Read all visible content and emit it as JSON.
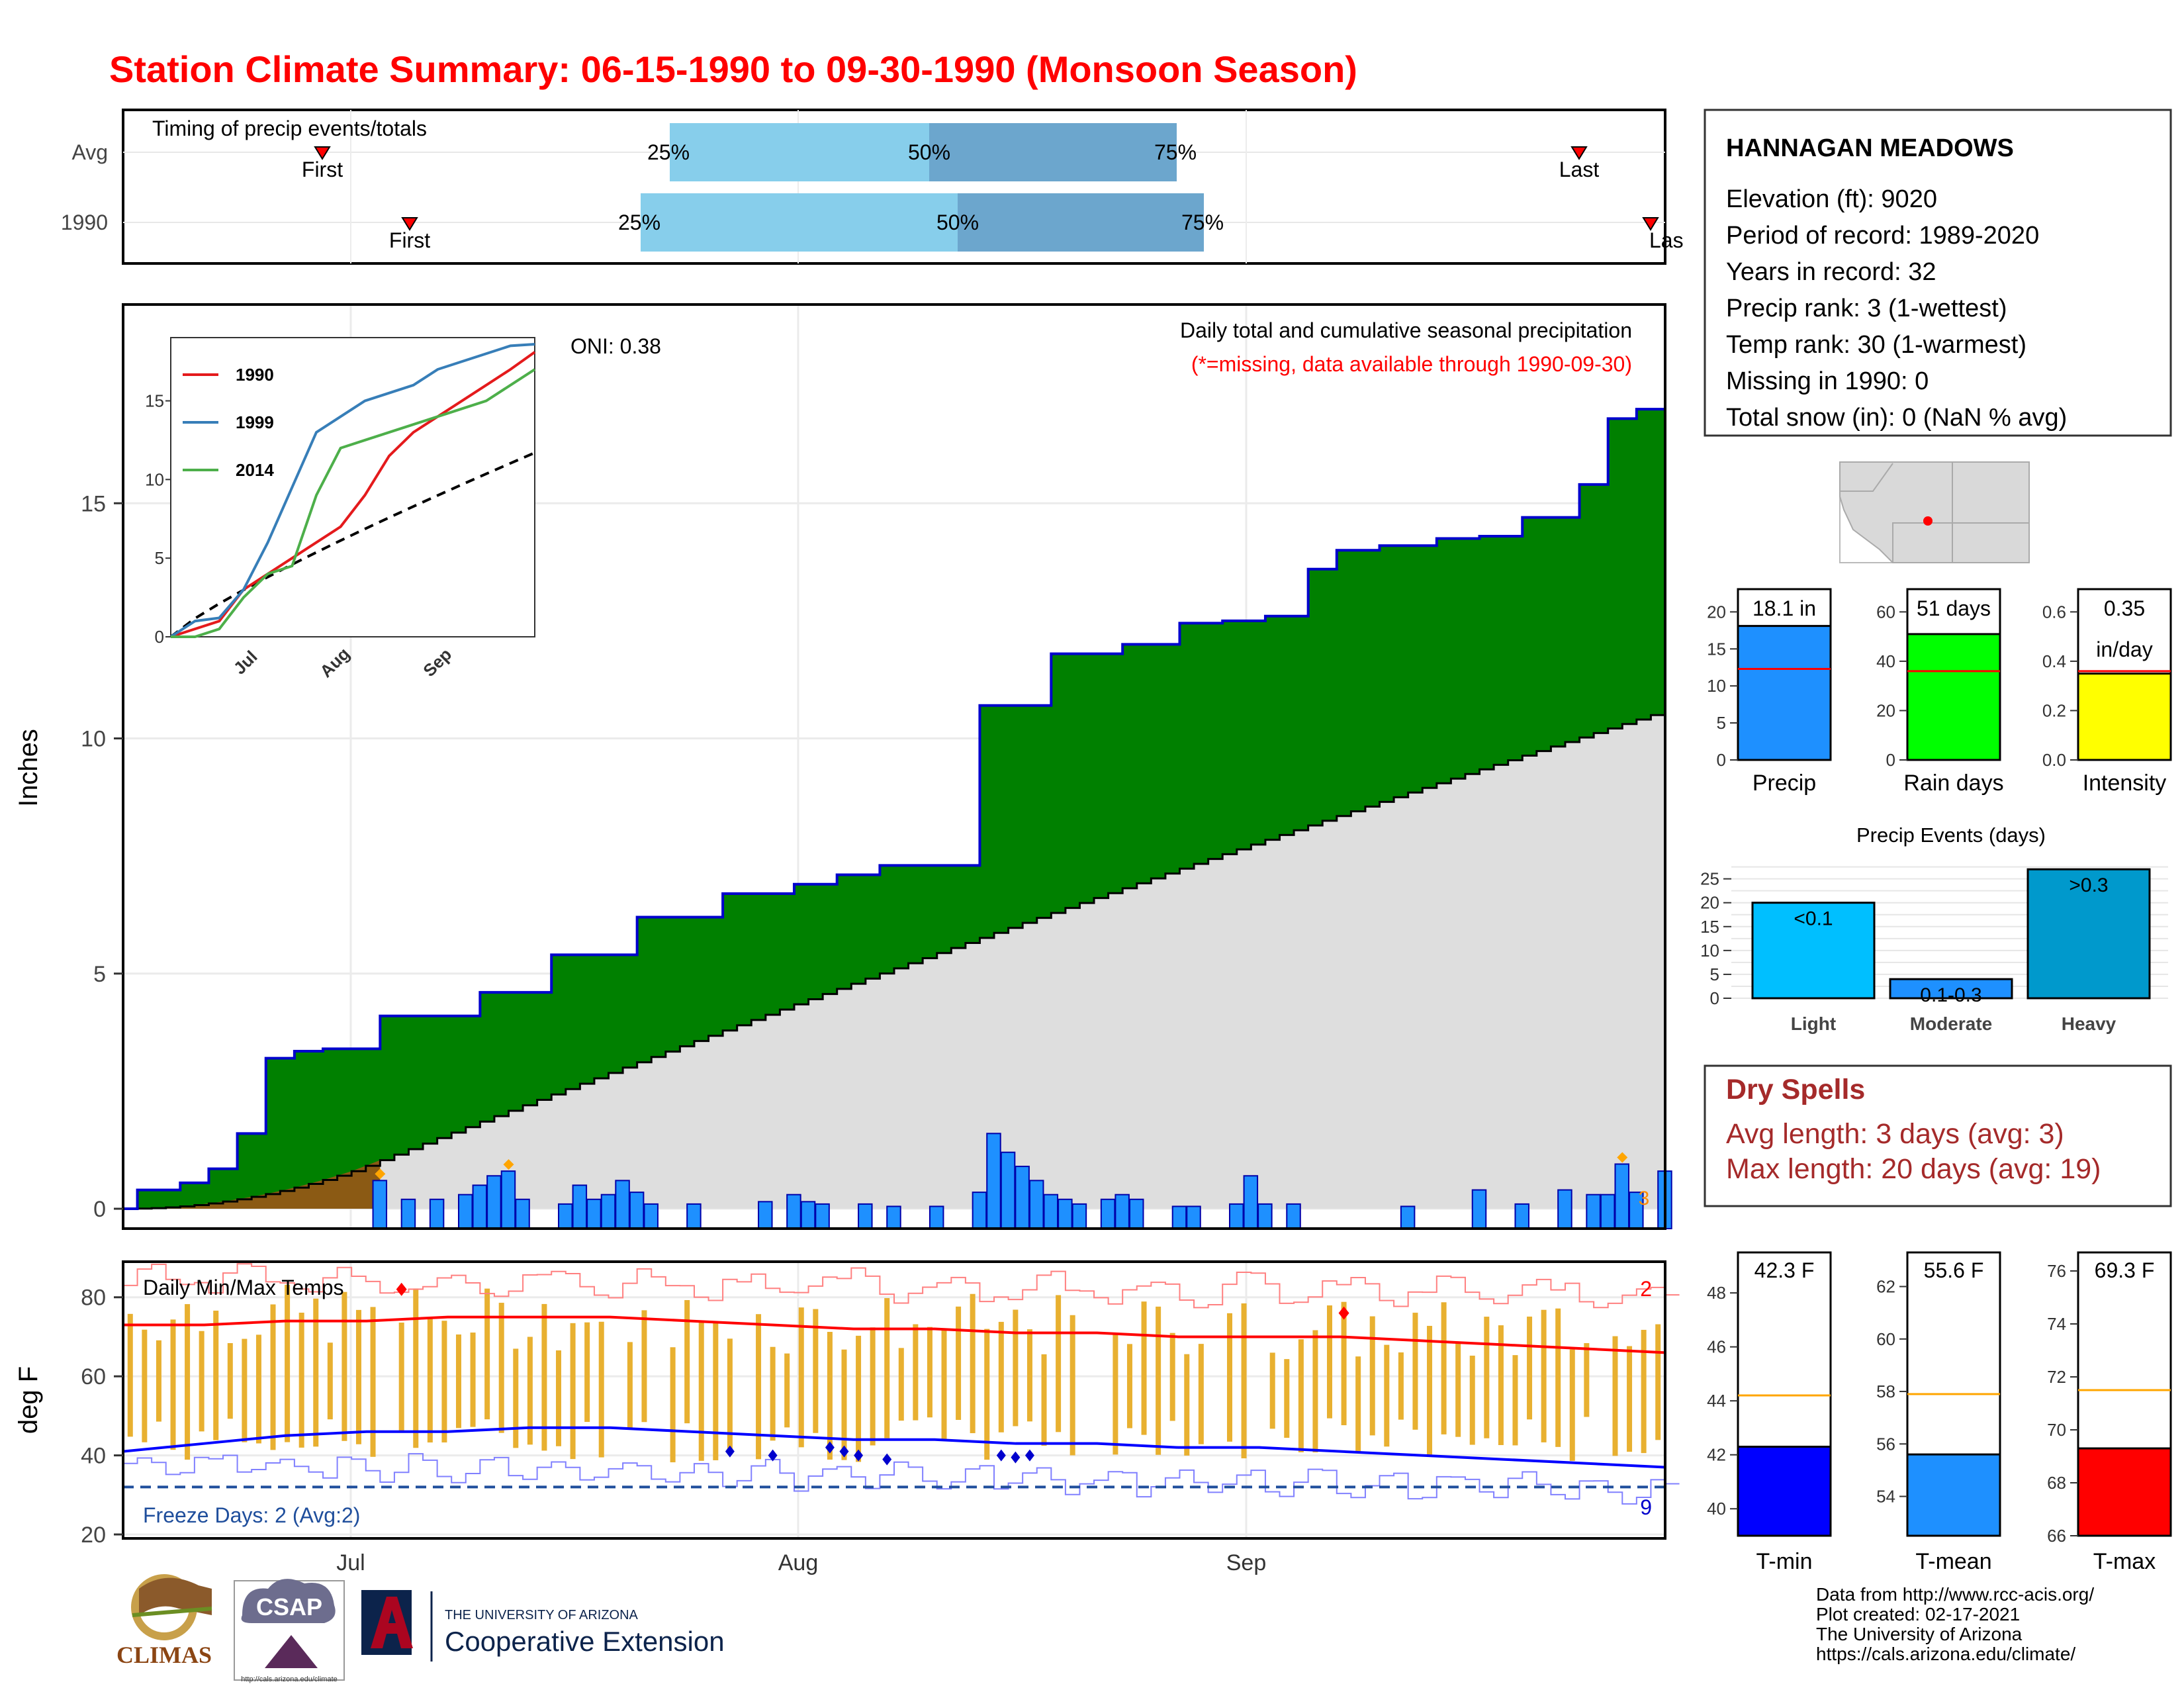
{
  "title": "Station Climate Summary: 06-15-1990 to 09-30-1990 (Monsoon Season)",
  "timing": {
    "label": "Timing of precip events/totals",
    "rows": [
      {
        "name": "Avg",
        "first": "Jun 20",
        "p25": "Jul 29",
        "p50": "Aug 6",
        "p75": "Aug 13",
        "last": "Sep 27"
      },
      {
        "name": "1990",
        "first": "Jul 2",
        "p25": "Jul 28",
        "p50": "Aug 7",
        "p75": "Aug 14",
        "last": "Sep 30"
      }
    ],
    "pct_labels": [
      "25%",
      "50%",
      "75%"
    ],
    "first_label": "First",
    "last_label": "Last",
    "last_label_clipped": "Las"
  },
  "main_panel": {
    "ylabel": "Inches",
    "oni": "ONI: 0.38",
    "caption": "Daily total and cumulative seasonal precipitation",
    "missing_note": "(*=missing, data available through 1990-09-30)",
    "marker_values": [
      "3"
    ]
  },
  "inset": {
    "series": [
      {
        "name": "1990",
        "color": "#e41a1c"
      },
      {
        "name": "1999",
        "color": "#377eb8"
      },
      {
        "name": "2014",
        "color": "#4daf4a"
      }
    ],
    "xticks": [
      "Jul",
      "Aug",
      "Sep"
    ]
  },
  "temp_panel": {
    "title": "Daily Min/Max Temps",
    "ylabel": "deg F",
    "freeze": "Freeze Days: 2 (Avg:2)",
    "count_top": "2",
    "count_bottom": "9"
  },
  "x_month_labels": [
    "Jul",
    "Aug",
    "Sep"
  ],
  "station": {
    "name": "HANNAGAN MEADOWS",
    "lines": [
      "Elevation (ft): 9020",
      "Period of record: 1989-2020",
      "Years in record: 32",
      "Precip rank: 3 (1-wettest)",
      "Temp rank: 30 (1-warmest)",
      "Missing in 1990: 0",
      "Total snow (in): 0 (NaN % avg)"
    ]
  },
  "mini_bars": [
    {
      "label": "Precip",
      "value_text": "18.1 in",
      "value": 18.1,
      "avg": 12.3,
      "ymax": 22,
      "ticks": [
        "0",
        "5",
        "10",
        "15",
        "20"
      ],
      "color": "#1e90ff"
    },
    {
      "label": "Rain days",
      "value_text": "51 days",
      "value": 51,
      "avg": 36,
      "ymax": 66,
      "ticks": [
        "0",
        "20",
        "40",
        "60"
      ],
      "color": "#00ff00"
    },
    {
      "label": "Intensity",
      "value_text": "0.35",
      "value_text2": "in/day",
      "value": 0.35,
      "avg": 0.36,
      "ymax": 0.66,
      "ticks": [
        "0.0",
        "0.2",
        "0.4",
        "0.6"
      ],
      "color": "#ffff00"
    }
  ],
  "precip_events": {
    "title": "Precip Events (days)",
    "categories": [
      "Light",
      "Moderate",
      "Heavy"
    ],
    "labels": [
      "<0.1",
      "0.1-0.3",
      ">0.3"
    ],
    "values": [
      20,
      4,
      27
    ],
    "ticks": [
      "0",
      "5",
      "10",
      "15",
      "20",
      "25"
    ]
  },
  "dry_spells": {
    "title": "Dry Spells",
    "avg": "Avg length: 3 days (avg: 3)",
    "max": "Max length: 20 days (avg: 19)"
  },
  "temp_bars": [
    {
      "label": "T-min",
      "value_text": "42.3 F",
      "value": 42.3,
      "avg": 44.2,
      "ymin": 39,
      "ymax": 49.5,
      "ticks": [
        "40",
        "42",
        "44",
        "46",
        "48"
      ],
      "color": "#0000ff"
    },
    {
      "label": "T-mean",
      "value_text": "55.6 F",
      "value": 55.6,
      "avg": 57.9,
      "ymin": 52.5,
      "ymax": 63.3,
      "ticks": [
        "54",
        "56",
        "58",
        "60",
        "62"
      ],
      "color": "#1e90ff"
    },
    {
      "label": "T-max",
      "value_text": "69.3 F",
      "value": 69.3,
      "avg": 71.5,
      "ymin": 66,
      "ymax": 76.7,
      "ticks": [
        "66",
        "68",
        "70",
        "72",
        "74",
        "76"
      ],
      "color": "#ff0000"
    }
  ],
  "footer": {
    "lines": [
      "Data from http://www.rcc-acis.org/",
      "Plot created: 02-17-2021",
      "The University of Arizona",
      "https://cals.arizona.edu/climate/"
    ],
    "climas": "CLIMAS",
    "csap": "CSAP",
    "csap_url": "http://cals.arizona.edu/climate",
    "ua_small": "THE UNIVERSITY OF ARIZONA",
    "ua_big": "Cooperative Extension"
  },
  "chart_data": [
    {
      "type": "area",
      "title": "Daily total and cumulative seasonal precipitation",
      "ylabel": "Inches",
      "ylim": [
        0,
        18.1
      ],
      "x_range": [
        "1990-06-15",
        "1990-09-30"
      ],
      "yticks": [
        0,
        5,
        10,
        15
      ],
      "cumulative_1990": {
        "x": [
          1,
          4,
          6,
          8,
          10,
          12,
          14,
          18,
          25,
          30,
          36,
          42,
          47,
          50,
          53,
          56,
          60,
          65,
          70,
          74,
          77,
          80,
          83,
          85,
          88,
          92,
          95,
          98,
          102,
          104,
          106,
          108
        ],
        "y": [
          0.4,
          0.55,
          0.85,
          1.6,
          3.2,
          3.35,
          3.4,
          4.1,
          4.6,
          5.4,
          6.2,
          6.7,
          6.9,
          7.1,
          7.3,
          7.3,
          10.7,
          11.8,
          12.0,
          12.45,
          12.5,
          12.6,
          13.6,
          14.0,
          14.1,
          14.25,
          14.3,
          14.7,
          15.4,
          16.8,
          17.0,
          18.1
        ]
      },
      "cumulative_avg_end": 11.7,
      "daily_bars": [
        {
          "day": 18,
          "v": 0.6
        },
        {
          "day": 20,
          "v": 0.2
        },
        {
          "day": 22,
          "v": 0.2
        },
        {
          "day": 24,
          "v": 0.3
        },
        {
          "day": 25,
          "v": 0.5
        },
        {
          "day": 26,
          "v": 0.7
        },
        {
          "day": 27,
          "v": 0.8
        },
        {
          "day": 28,
          "v": 0.2
        },
        {
          "day": 31,
          "v": 0.1
        },
        {
          "day": 32,
          "v": 0.5
        },
        {
          "day": 33,
          "v": 0.2
        },
        {
          "day": 34,
          "v": 0.3
        },
        {
          "day": 35,
          "v": 0.6
        },
        {
          "day": 36,
          "v": 0.35
        },
        {
          "day": 37,
          "v": 0.1
        },
        {
          "day": 40,
          "v": 0.1
        },
        {
          "day": 45,
          "v": 0.15
        },
        {
          "day": 47,
          "v": 0.3
        },
        {
          "day": 48,
          "v": 0.15
        },
        {
          "day": 49,
          "v": 0.1
        },
        {
          "day": 52,
          "v": 0.1
        },
        {
          "day": 54,
          "v": 0.05
        },
        {
          "day": 57,
          "v": 0.05
        },
        {
          "day": 60,
          "v": 0.35
        },
        {
          "day": 61,
          "v": 1.6
        },
        {
          "day": 62,
          "v": 1.2
        },
        {
          "day": 63,
          "v": 0.9
        },
        {
          "day": 64,
          "v": 0.6
        },
        {
          "day": 65,
          "v": 0.3
        },
        {
          "day": 66,
          "v": 0.2
        },
        {
          "day": 67,
          "v": 0.1
        },
        {
          "day": 69,
          "v": 0.2
        },
        {
          "day": 70,
          "v": 0.3
        },
        {
          "day": 71,
          "v": 0.2
        },
        {
          "day": 74,
          "v": 0.05
        },
        {
          "day": 75,
          "v": 0.05
        },
        {
          "day": 78,
          "v": 0.1
        },
        {
          "day": 79,
          "v": 0.7
        },
        {
          "day": 80,
          "v": 0.1
        },
        {
          "day": 82,
          "v": 0.1
        },
        {
          "day": 90,
          "v": 0.05
        },
        {
          "day": 95,
          "v": 0.4
        },
        {
          "day": 98,
          "v": 0.1
        },
        {
          "day": 101,
          "v": 0.4
        },
        {
          "day": 103,
          "v": 0.3
        },
        {
          "day": 104,
          "v": 0.3
        },
        {
          "day": 105,
          "v": 0.95
        },
        {
          "day": 106,
          "v": 0.35
        },
        {
          "day": 108,
          "v": 0.8
        }
      ]
    },
    {
      "type": "line",
      "title": "Daily Min/Max Temps",
      "ylabel": "deg F",
      "ylim": [
        19,
        89
      ],
      "yticks": [
        20,
        40,
        60,
        80
      ],
      "freeze_line": 32,
      "series": [
        {
          "name": "avg max",
          "values": [
            73,
            73,
            74,
            74,
            75,
            75,
            75,
            74,
            73,
            72,
            72,
            71,
            71,
            70,
            70,
            70,
            69,
            68,
            67,
            66
          ]
        },
        {
          "name": "avg min",
          "values": [
            41,
            43,
            45,
            46,
            46,
            47,
            47,
            46,
            45,
            44,
            44,
            43,
            43,
            42,
            42,
            41,
            40,
            39,
            38,
            37
          ]
        }
      ]
    },
    {
      "type": "line",
      "title": "",
      "series": [
        {
          "name": "1990",
          "values": [
            0,
            0.5,
            1.0,
            3.0,
            4.0,
            5.0,
            6.0,
            7.0,
            9.0,
            11.5,
            13.0,
            14.0,
            15.0,
            16.0,
            17.0,
            18.1
          ]
        },
        {
          "name": "1999",
          "values": [
            0,
            1.0,
            1.2,
            3.0,
            6.0,
            9.5,
            13.0,
            14.0,
            15.0,
            15.5,
            16.0,
            17.0,
            17.5,
            18.0,
            18.5,
            18.6
          ]
        },
        {
          "name": "2014",
          "values": [
            0,
            0,
            0.5,
            2.5,
            4.0,
            4.5,
            9.0,
            12.0,
            12.5,
            13.0,
            13.5,
            14.0,
            14.5,
            15.0,
            16.0,
            17.0
          ]
        }
      ],
      "xticks": [
        "Jul",
        "Aug",
        "Sep"
      ],
      "yticks": [
        0,
        5,
        10,
        15
      ]
    }
  ]
}
